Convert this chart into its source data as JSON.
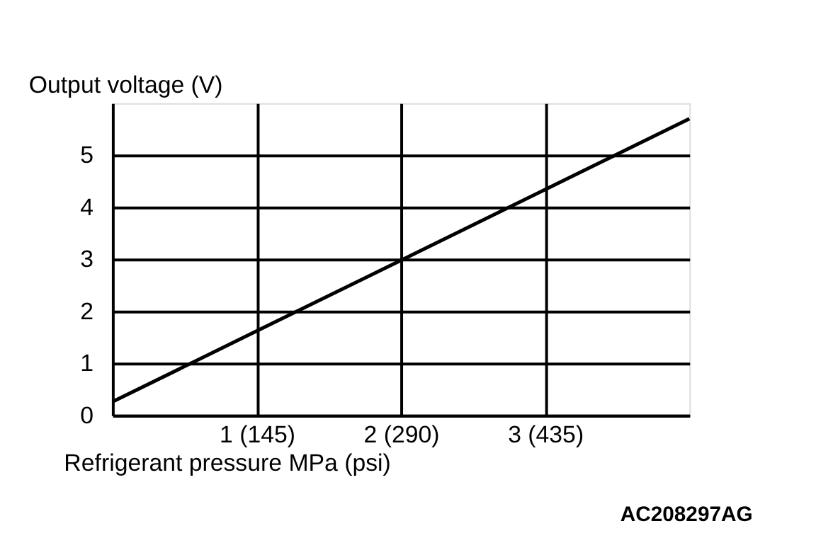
{
  "chart_data": {
    "type": "line",
    "categories": [
      null,
      "1 (145)",
      "2 (290)",
      "3 (435)",
      null
    ],
    "series": [
      {
        "color": "#000000",
        "values": [
          0.26,
          1.62,
          2.98,
          4.34,
          5.7
        ]
      }
    ],
    "xlabel": "Refrigerant pressure MPa (psi)",
    "ylabel": "Output voltage (V)",
    "ylim": [
      0,
      6
    ],
    "yticks": [
      0,
      1,
      2,
      3,
      4,
      5
    ],
    "grid": true,
    "marker": "none",
    "line_style": "solid",
    "annotations": [
      "AC208297AG"
    ]
  }
}
